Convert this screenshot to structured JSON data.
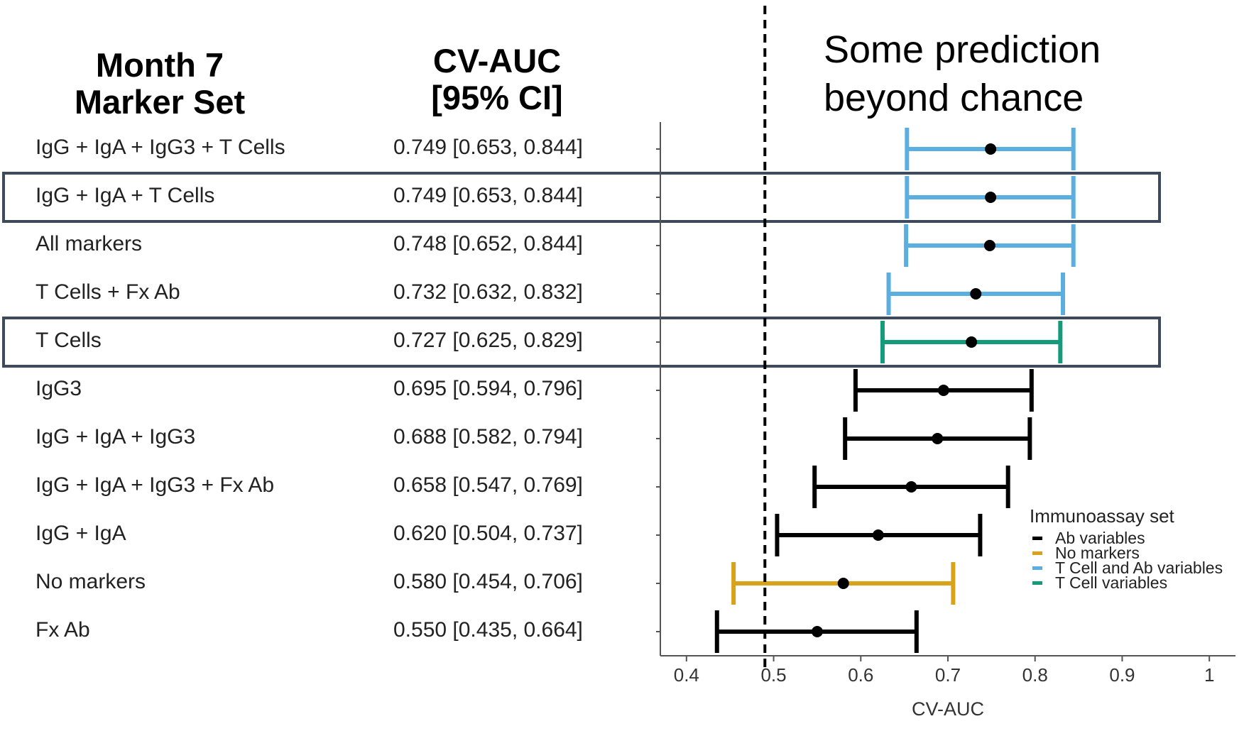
{
  "header": {
    "marker_set_line1": "Month 7",
    "marker_set_line2": "Marker Set",
    "auc_line1": "CV-AUC",
    "auc_line2": "[95% CI]"
  },
  "annotation": {
    "line1": "Some prediction",
    "line2": "beyond chance"
  },
  "colors": {
    "Ab variables": "#000000",
    "No markers": "#d9a21b",
    "T Cell and Ab variables": "#5aafe0",
    "T Cell variables": "#149b7a",
    "box": "#3d4a5c"
  },
  "chart_data": {
    "type": "forest",
    "xlabel": "CV-AUC",
    "xlim": [
      0.37,
      1.03
    ],
    "xticks": [
      0.4,
      0.5,
      0.6,
      0.7,
      0.8,
      0.9,
      1
    ],
    "xtick_labels": [
      "0.4",
      "0.5",
      "0.6",
      "0.7",
      "0.8",
      "0.9",
      "1"
    ],
    "reference_line": 0.49,
    "legend_title": "Immunoassay set",
    "legend": [
      "Ab variables",
      "No markers",
      "T Cell and Ab variables",
      "T Cell variables"
    ],
    "rows": [
      {
        "label": "IgG + IgA + IgG3 + T Cells",
        "auc_text": "0.749 [0.653, 0.844]",
        "auc": 0.749,
        "lo": 0.653,
        "hi": 0.844,
        "set": "T Cell and Ab variables",
        "highlight": false
      },
      {
        "label": "IgG + IgA + T Cells",
        "auc_text": "0.749 [0.653, 0.844]",
        "auc": 0.749,
        "lo": 0.653,
        "hi": 0.844,
        "set": "T Cell and Ab variables",
        "highlight": true
      },
      {
        "label": "All markers",
        "auc_text": "0.748 [0.652, 0.844]",
        "auc": 0.748,
        "lo": 0.652,
        "hi": 0.844,
        "set": "T Cell and Ab variables",
        "highlight": false
      },
      {
        "label": "T Cells + Fx Ab",
        "auc_text": "0.732 [0.632, 0.832]",
        "auc": 0.732,
        "lo": 0.632,
        "hi": 0.832,
        "set": "T Cell and Ab variables",
        "highlight": false
      },
      {
        "label": "T Cells",
        "auc_text": "0.727 [0.625, 0.829]",
        "auc": 0.727,
        "lo": 0.625,
        "hi": 0.829,
        "set": "T Cell variables",
        "highlight": true
      },
      {
        "label": "IgG3",
        "auc_text": "0.695 [0.594, 0.796]",
        "auc": 0.695,
        "lo": 0.594,
        "hi": 0.796,
        "set": "Ab variables",
        "highlight": false
      },
      {
        "label": "IgG + IgA + IgG3",
        "auc_text": "0.688 [0.582, 0.794]",
        "auc": 0.688,
        "lo": 0.582,
        "hi": 0.794,
        "set": "Ab variables",
        "highlight": false
      },
      {
        "label": "IgG + IgA + IgG3 + Fx Ab",
        "auc_text": "0.658 [0.547, 0.769]",
        "auc": 0.658,
        "lo": 0.547,
        "hi": 0.769,
        "set": "Ab variables",
        "highlight": false
      },
      {
        "label": "IgG + IgA",
        "auc_text": "0.620 [0.504, 0.737]",
        "auc": 0.62,
        "lo": 0.504,
        "hi": 0.737,
        "set": "Ab variables",
        "highlight": false
      },
      {
        "label": "No markers",
        "auc_text": "0.580 [0.454, 0.706]",
        "auc": 0.58,
        "lo": 0.454,
        "hi": 0.706,
        "set": "No markers",
        "highlight": false
      },
      {
        "label": "Fx Ab",
        "auc_text": "0.550 [0.435, 0.664]",
        "auc": 0.55,
        "lo": 0.435,
        "hi": 0.664,
        "set": "Ab variables",
        "highlight": false
      }
    ]
  }
}
